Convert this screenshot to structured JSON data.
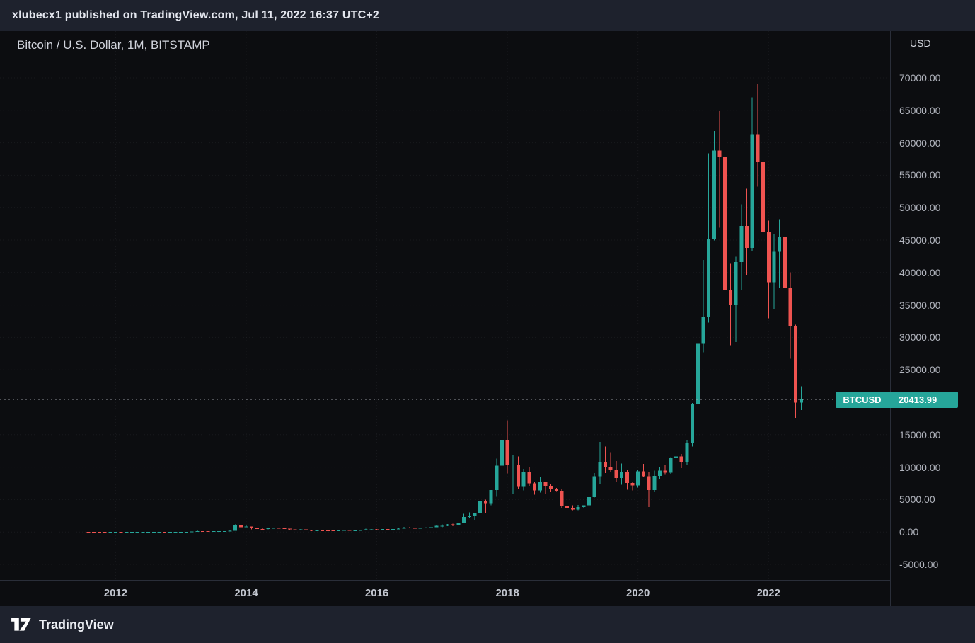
{
  "publish_bar": {
    "text": "xlubecx1 published on TradingView.com, Jul 11, 2022 16:37 UTC+2"
  },
  "legend": {
    "title": "Bitcoin / U.S. Dollar, 1M, BITSTAMP"
  },
  "price_axis": {
    "currency_label": "USD",
    "ticks": [
      {
        "value": 70000,
        "label": "70000.00"
      },
      {
        "value": 65000,
        "label": "65000.00"
      },
      {
        "value": 60000,
        "label": "60000.00"
      },
      {
        "value": 55000,
        "label": "55000.00"
      },
      {
        "value": 50000,
        "label": "50000.00"
      },
      {
        "value": 45000,
        "label": "45000.00"
      },
      {
        "value": 40000,
        "label": "40000.00"
      },
      {
        "value": 35000,
        "label": "35000.00"
      },
      {
        "value": 30000,
        "label": "30000.00"
      },
      {
        "value": 25000,
        "label": "25000.00"
      },
      {
        "value": 15000,
        "label": "15000.00"
      },
      {
        "value": 10000,
        "label": "10000.00"
      },
      {
        "value": 5000,
        "label": "5000.00"
      },
      {
        "value": 0,
        "label": "0.00"
      },
      {
        "value": -5000,
        "label": "-5000.00"
      }
    ],
    "last_price_label": {
      "symbol": "BTCUSD",
      "price": "20413.99",
      "value": 20413.99
    }
  },
  "time_axis": {
    "labels": [
      {
        "label": "2012",
        "month": "2012-01"
      },
      {
        "label": "2014",
        "month": "2014-01"
      },
      {
        "label": "2016",
        "month": "2016-01"
      },
      {
        "label": "2018",
        "month": "2018-01"
      },
      {
        "label": "2020",
        "month": "2020-01"
      },
      {
        "label": "2022",
        "month": "2022-01"
      }
    ]
  },
  "footer": {
    "brand": "TradingView"
  },
  "colors": {
    "up": "#26a69a",
    "down": "#ef5350",
    "badge_bg": "#26a69a",
    "last_price_line": "#b2b5be",
    "grid": "rgba(134,137,147,0.10)",
    "background": "#0c0d10",
    "panel": "#1e222d",
    "axis_text": "#b2b5be",
    "separator": "#2a2e39"
  },
  "chart_data": {
    "type": "candlestick",
    "title": "Bitcoin / U.S. Dollar, 1M, BITSTAMP",
    "symbol": "BTCUSD",
    "interval": "1M",
    "exchange": "BITSTAMP",
    "last_price": 20413.99,
    "ylabel": "USD",
    "ylim_visible": [
      -7000,
      76000
    ],
    "y_tick_step": 5000,
    "x_visible_range": [
      "2011-08",
      "2022-07"
    ],
    "grid": "faint-dotted",
    "legend_position": "top-left",
    "candle_format": [
      "time",
      "open",
      "high",
      "low",
      "close"
    ],
    "candles": [
      [
        "2011-08",
        13.1,
        13.5,
        5.9,
        8.2
      ],
      [
        "2011-09",
        8.2,
        8.9,
        4.3,
        5.1
      ],
      [
        "2011-10",
        5.1,
        5.3,
        2.0,
        3.2
      ],
      [
        "2011-11",
        3.2,
        3.6,
        1.9,
        3.0
      ],
      [
        "2011-12",
        3.0,
        4.9,
        2.8,
        4.7
      ],
      [
        "2012-01",
        4.7,
        7.2,
        4.6,
        5.5
      ],
      [
        "2012-02",
        5.5,
        6.2,
        3.8,
        4.9
      ],
      [
        "2012-03",
        4.9,
        5.5,
        4.5,
        4.9
      ],
      [
        "2012-04",
        4.9,
        5.4,
        4.7,
        4.9
      ],
      [
        "2012-05",
        4.9,
        5.3,
        4.8,
        5.2
      ],
      [
        "2012-06",
        5.2,
        6.8,
        5.1,
        6.7
      ],
      [
        "2012-07",
        6.7,
        9.5,
        6.5,
        9.4
      ],
      [
        "2012-08",
        9.4,
        16.4,
        7.5,
        10.2
      ],
      [
        "2012-09",
        10.2,
        12.7,
        9.9,
        12.4
      ],
      [
        "2012-10",
        12.4,
        12.8,
        10.3,
        11.2
      ],
      [
        "2012-11",
        11.2,
        12.9,
        10.5,
        12.6
      ],
      [
        "2012-12",
        12.6,
        13.9,
        12.3,
        13.5
      ],
      [
        "2013-01",
        13.5,
        20.6,
        13.2,
        20.4
      ],
      [
        "2013-02",
        20.4,
        34.5,
        19.6,
        33.4
      ],
      [
        "2013-03",
        33.4,
        95.7,
        33.0,
        93.0
      ],
      [
        "2013-04",
        93.0,
        266.0,
        50.0,
        139.2
      ],
      [
        "2013-05",
        139.2,
        147.5,
        79.0,
        128.8
      ],
      [
        "2013-06",
        128.8,
        129.8,
        88.0,
        97.5
      ],
      [
        "2013-07",
        97.5,
        111.0,
        63.0,
        106.2
      ],
      [
        "2013-08",
        106.2,
        140.0,
        92.0,
        135.1
      ],
      [
        "2013-09",
        135.1,
        147.0,
        109.0,
        141.9
      ],
      [
        "2013-10",
        141.9,
        216.0,
        109.7,
        211.2
      ],
      [
        "2013-11",
        211.2,
        1163.0,
        200.0,
        1113.0
      ],
      [
        "2013-12",
        1113.0,
        1153.0,
        382.0,
        754.0
      ],
      [
        "2014-01",
        754.0,
        1029.0,
        735.0,
        853.0
      ],
      [
        "2014-02",
        853.0,
        858.0,
        400.0,
        550.0
      ],
      [
        "2014-03",
        550.0,
        703.0,
        436.0,
        458.0
      ],
      [
        "2014-04",
        458.0,
        545.0,
        340.0,
        446.0
      ],
      [
        "2014-05",
        446.0,
        628.0,
        420.0,
        627.0
      ],
      [
        "2014-06",
        627.0,
        676.0,
        540.0,
        635.0
      ],
      [
        "2014-07",
        635.0,
        655.0,
        565.0,
        589.0
      ],
      [
        "2014-08",
        589.0,
        600.0,
        455.0,
        509.0
      ],
      [
        "2014-09",
        509.0,
        530.0,
        365.0,
        386.0
      ],
      [
        "2014-10",
        386.0,
        412.0,
        275.0,
        338.0
      ],
      [
        "2014-11",
        338.0,
        460.0,
        320.0,
        378.0
      ],
      [
        "2014-12",
        378.0,
        384.0,
        280.0,
        320.0
      ],
      [
        "2015-01",
        320.0,
        321.0,
        152.0,
        217.0
      ],
      [
        "2015-02",
        217.0,
        266.0,
        210.0,
        254.0
      ],
      [
        "2015-03",
        254.0,
        300.0,
        236.0,
        244.0
      ],
      [
        "2015-04",
        244.0,
        262.0,
        210.0,
        236.0
      ],
      [
        "2015-05",
        236.0,
        248.0,
        227.0,
        230.0
      ],
      [
        "2015-06",
        230.0,
        268.0,
        210.0,
        263.0
      ],
      [
        "2015-07",
        263.0,
        318.0,
        255.0,
        284.0
      ],
      [
        "2015-08",
        284.0,
        288.0,
        198.0,
        230.0
      ],
      [
        "2015-09",
        230.0,
        246.0,
        223.0,
        236.0
      ],
      [
        "2015-10",
        236.0,
        334.0,
        235.0,
        314.0
      ],
      [
        "2015-11",
        314.0,
        504.0,
        300.0,
        377.0
      ],
      [
        "2015-12",
        377.0,
        469.0,
        350.0,
        430.0
      ],
      [
        "2016-01",
        430.0,
        436.0,
        351.0,
        368.0
      ],
      [
        "2016-02",
        368.0,
        447.0,
        365.0,
        437.0
      ],
      [
        "2016-03",
        437.0,
        444.0,
        383.0,
        416.0
      ],
      [
        "2016-04",
        416.0,
        470.0,
        410.0,
        448.0
      ],
      [
        "2016-05",
        448.0,
        547.0,
        438.0,
        531.0
      ],
      [
        "2016-06",
        531.0,
        781.0,
        522.0,
        673.0
      ],
      [
        "2016-07",
        673.0,
        706.0,
        593.0,
        624.0
      ],
      [
        "2016-08",
        624.0,
        630.0,
        465.0,
        575.0
      ],
      [
        "2016-09",
        575.0,
        629.0,
        565.0,
        610.0
      ],
      [
        "2016-10",
        610.0,
        720.0,
        603.0,
        700.0
      ],
      [
        "2016-11",
        700.0,
        755.0,
        678.0,
        745.0
      ],
      [
        "2016-12",
        745.0,
        982.0,
        740.0,
        963.0
      ],
      [
        "2017-01",
        963.0,
        1191.0,
        752.0,
        970.0
      ],
      [
        "2017-02",
        970.0,
        1220.0,
        918.0,
        1190.0
      ],
      [
        "2017-03",
        1190.0,
        1290.0,
        891.0,
        1080.0
      ],
      [
        "2017-04",
        1080.0,
        1365.0,
        1060.0,
        1350.0
      ],
      [
        "2017-05",
        1350.0,
        2780.0,
        1340.0,
        2300.0
      ],
      [
        "2017-06",
        2300.0,
        3000.0,
        2120.0,
        2480.0
      ],
      [
        "2017-07",
        2480.0,
        2930.0,
        1830.0,
        2875.0
      ],
      [
        "2017-08",
        2875.0,
        4765.0,
        2640.0,
        4735.0
      ],
      [
        "2017-09",
        4735.0,
        4980.0,
        2980.0,
        4360.0
      ],
      [
        "2017-10",
        4360.0,
        6470.0,
        4110.0,
        6468.0
      ],
      [
        "2017-11",
        6468.0,
        11300.0,
        5400.0,
        10233.0
      ],
      [
        "2017-12",
        10233.0,
        19666.0,
        9370.0,
        14156.0
      ],
      [
        "2018-01",
        14156.0,
        17234.0,
        9035.0,
        10285.0
      ],
      [
        "2018-02",
        10285.0,
        11786.0,
        5920.0,
        10397.0
      ],
      [
        "2018-03",
        10397.0,
        11660.0,
        6600.0,
        6938.0
      ],
      [
        "2018-04",
        6938.0,
        9745.0,
        6425.0,
        9245.0
      ],
      [
        "2018-05",
        9245.0,
        9990.0,
        7040.0,
        7494.0
      ],
      [
        "2018-06",
        7494.0,
        7750.0,
        5780.0,
        6404.0
      ],
      [
        "2018-07",
        6404.0,
        8480.0,
        6070.0,
        7735.0
      ],
      [
        "2018-08",
        7735.0,
        7750.0,
        5880.0,
        7033.0
      ],
      [
        "2018-09",
        7033.0,
        7410.0,
        6120.0,
        6626.0
      ],
      [
        "2018-10",
        6626.0,
        6810.0,
        6190.0,
        6371.0
      ],
      [
        "2018-11",
        6371.0,
        6550.0,
        3620.0,
        4017.0
      ],
      [
        "2018-12",
        4017.0,
        4410.0,
        3122.0,
        3747.0
      ],
      [
        "2019-01",
        3747.0,
        4110.0,
        3350.0,
        3457.0
      ],
      [
        "2019-02",
        3457.0,
        4190.0,
        3330.0,
        3855.0
      ],
      [
        "2019-03",
        3855.0,
        4140.0,
        3680.0,
        4105.0
      ],
      [
        "2019-04",
        4105.0,
        5650.0,
        4060.0,
        5350.0
      ],
      [
        "2019-05",
        5350.0,
        9090.0,
        5330.0,
        8574.0
      ],
      [
        "2019-06",
        8574.0,
        13880.0,
        7430.0,
        10817.0
      ],
      [
        "2019-07",
        10817.0,
        13200.0,
        9080.0,
        10085.0
      ],
      [
        "2019-08",
        10085.0,
        12320.0,
        9230.0,
        9630.0
      ],
      [
        "2019-09",
        9630.0,
        10950.0,
        7700.0,
        8310.0
      ],
      [
        "2019-10",
        8310.0,
        10540.0,
        7293.0,
        9199.0
      ],
      [
        "2019-11",
        9199.0,
        9550.0,
        6515.0,
        7569.0
      ],
      [
        "2019-12",
        7569.0,
        7760.0,
        6435.0,
        7196.0
      ],
      [
        "2020-01",
        7196.0,
        9570.0,
        6850.0,
        9350.0
      ],
      [
        "2020-02",
        9350.0,
        10500.0,
        8444.0,
        8599.0
      ],
      [
        "2020-03",
        8599.0,
        9200.0,
        3850.0,
        6438.0
      ],
      [
        "2020-04",
        6438.0,
        9460.0,
        6140.0,
        8658.0
      ],
      [
        "2020-05",
        8658.0,
        10070.0,
        8115.0,
        9461.0
      ],
      [
        "2020-06",
        9461.0,
        10380.0,
        8830.0,
        9137.0
      ],
      [
        "2020-07",
        9137.0,
        11450.0,
        8900.0,
        11351.0
      ],
      [
        "2020-08",
        11351.0,
        12486.0,
        10645.0,
        11655.0
      ],
      [
        "2020-09",
        11655.0,
        12050.0,
        9825.0,
        10778.0
      ],
      [
        "2020-10",
        10778.0,
        14100.0,
        10380.0,
        13781.0
      ],
      [
        "2020-11",
        13781.0,
        19915.0,
        13200.0,
        19695.0
      ],
      [
        "2020-12",
        19695.0,
        29330.0,
        17570.0,
        28990.0
      ],
      [
        "2021-01",
        28990.0,
        41950.0,
        27700.0,
        33137.0
      ],
      [
        "2021-02",
        33137.0,
        58350.0,
        32300.0,
        45240.0
      ],
      [
        "2021-03",
        45240.0,
        61800.0,
        44950.0,
        58800.0
      ],
      [
        "2021-04",
        58800.0,
        64863.0,
        46930.0,
        57750.0
      ],
      [
        "2021-05",
        57750.0,
        59500.0,
        30000.0,
        37332.0
      ],
      [
        "2021-06",
        37332.0,
        41330.0,
        28800.0,
        35041.0
      ],
      [
        "2021-07",
        35041.0,
        42450.0,
        29300.0,
        41626.0
      ],
      [
        "2021-08",
        41626.0,
        50500.0,
        37300.0,
        47166.0
      ],
      [
        "2021-09",
        47166.0,
        52920.0,
        39600.0,
        43790.0
      ],
      [
        "2021-10",
        43790.0,
        66999.0,
        43283.0,
        61318.0
      ],
      [
        "2021-11",
        61318.0,
        69000.0,
        53250.0,
        57005.0
      ],
      [
        "2021-12",
        57005.0,
        59100.0,
        42000.0,
        46211.0
      ],
      [
        "2022-01",
        46211.0,
        47990.0,
        32950.0,
        38483.0
      ],
      [
        "2022-02",
        38483.0,
        45850.0,
        34300.0,
        43193.0
      ],
      [
        "2022-03",
        43193.0,
        48240.0,
        37550.0,
        45538.0
      ],
      [
        "2022-04",
        45538.0,
        47450.0,
        37580.0,
        37644.0
      ],
      [
        "2022-05",
        37644.0,
        40020.0,
        26700.0,
        31792.0
      ],
      [
        "2022-06",
        31792.0,
        31980.0,
        17590.0,
        19942.0
      ],
      [
        "2022-07",
        19942.0,
        22450.0,
        18780.0,
        20413.99
      ]
    ]
  }
}
